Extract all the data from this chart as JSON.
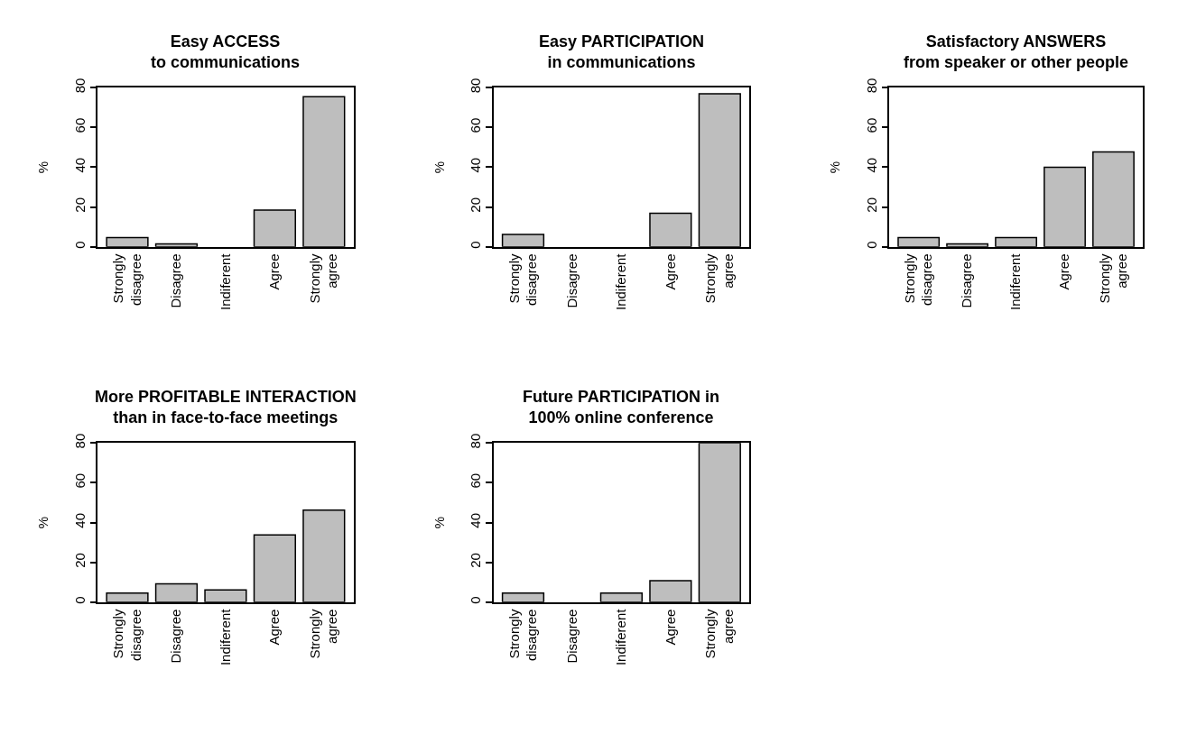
{
  "chart_data": [
    {
      "type": "bar",
      "title": "Easy ACCESS\nto communications",
      "ylabel": "%",
      "categories": [
        "Strongly\ndisagree",
        "Disagree",
        "Indiferent",
        "Agree",
        "Strongly\nagree"
      ],
      "values": [
        4.6,
        1.5,
        0,
        18.5,
        75.4
      ],
      "color": "#bebebe",
      "ylim": [
        0,
        80
      ],
      "yticks": [
        0,
        20,
        40,
        60,
        80
      ]
    },
    {
      "type": "bar",
      "title": "Easy PARTICIPATION\nin communications",
      "ylabel": "%",
      "categories": [
        "Strongly\ndisagree",
        "Disagree",
        "Indiferent",
        "Agree",
        "Strongly\nagree"
      ],
      "values": [
        6.2,
        0,
        0,
        16.9,
        76.9
      ],
      "color": "#bebebe",
      "ylim": [
        0,
        80
      ],
      "yticks": [
        0,
        20,
        40,
        60,
        80
      ]
    },
    {
      "type": "bar",
      "title": "Satisfactory ANSWERS\nfrom speaker or other people",
      "ylabel": "%",
      "categories": [
        "Strongly\ndisagree",
        "Disagree",
        "Indiferent",
        "Agree",
        "Strongly\nagree"
      ],
      "values": [
        4.6,
        1.5,
        4.6,
        40,
        47.7
      ],
      "color": "#bebebe",
      "ylim": [
        0,
        80
      ],
      "yticks": [
        0,
        20,
        40,
        60,
        80
      ]
    },
    {
      "type": "bar",
      "title": "More PROFITABLE INTERACTION\nthan in face-to-face meetings",
      "ylabel": "%",
      "categories": [
        "Strongly\ndisagree",
        "Disagree",
        "Indiferent",
        "Agree",
        "Strongly\nagree"
      ],
      "values": [
        4.6,
        9.2,
        6.2,
        33.8,
        46.2
      ],
      "color": "#bebebe",
      "ylim": [
        0,
        80
      ],
      "yticks": [
        0,
        20,
        40,
        60,
        80
      ]
    },
    {
      "type": "bar",
      "title": "Future PARTICIPATION in\n100% online conference",
      "ylabel": "%",
      "categories": [
        "Strongly\ndisagree",
        "Disagree",
        "Indiferent",
        "Agree",
        "Strongly\nagree"
      ],
      "values": [
        4.6,
        0,
        4.6,
        10.8,
        80
      ],
      "color": "#bebebe",
      "ylim": [
        0,
        80
      ],
      "yticks": [
        0,
        20,
        40,
        60,
        80
      ]
    }
  ]
}
